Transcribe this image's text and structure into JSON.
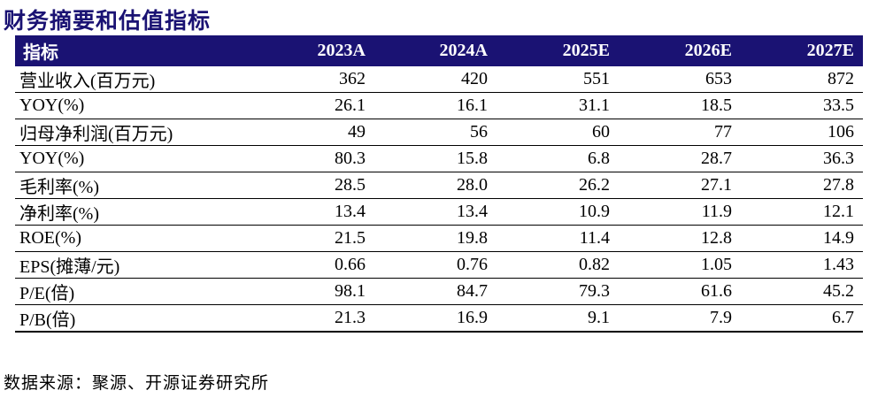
{
  "page": {
    "title": "财务摘要和估值指标",
    "source_note": "数据来源：聚源、开源证券研究所"
  },
  "colors": {
    "accent_navy": "#1A1273",
    "header_text": "#FFFFFF",
    "body_text": "#000000"
  },
  "table": {
    "header": [
      "指标",
      "2023A",
      "2024A",
      "2025E",
      "2026E",
      "2027E"
    ],
    "rows": [
      {
        "label": "营业收入(百万元)",
        "values": [
          "362",
          "420",
          "551",
          "653",
          "872"
        ]
      },
      {
        "label": "YOY(%)",
        "values": [
          "26.1",
          "16.1",
          "31.1",
          "18.5",
          "33.5"
        ]
      },
      {
        "label": "归母净利润(百万元)",
        "values": [
          "49",
          "56",
          "60",
          "77",
          "106"
        ]
      },
      {
        "label": "YOY(%)",
        "values": [
          "80.3",
          "15.8",
          "6.8",
          "28.7",
          "36.3"
        ]
      },
      {
        "label": "毛利率(%)",
        "values": [
          "28.5",
          "28.0",
          "26.2",
          "27.1",
          "27.8"
        ]
      },
      {
        "label": "净利率(%)",
        "values": [
          "13.4",
          "13.4",
          "10.9",
          "11.9",
          "12.1"
        ]
      },
      {
        "label": "ROE(%)",
        "values": [
          "21.5",
          "19.8",
          "11.4",
          "12.8",
          "14.9"
        ]
      },
      {
        "label": "EPS(摊薄/元)",
        "values": [
          "0.66",
          "0.76",
          "0.82",
          "1.05",
          "1.43"
        ]
      },
      {
        "label": "P/E(倍)",
        "values": [
          "98.1",
          "84.7",
          "79.3",
          "61.6",
          "45.2"
        ]
      },
      {
        "label": "P/B(倍)",
        "values": [
          "21.3",
          "16.9",
          "9.1",
          "7.9",
          "6.7"
        ]
      }
    ]
  }
}
